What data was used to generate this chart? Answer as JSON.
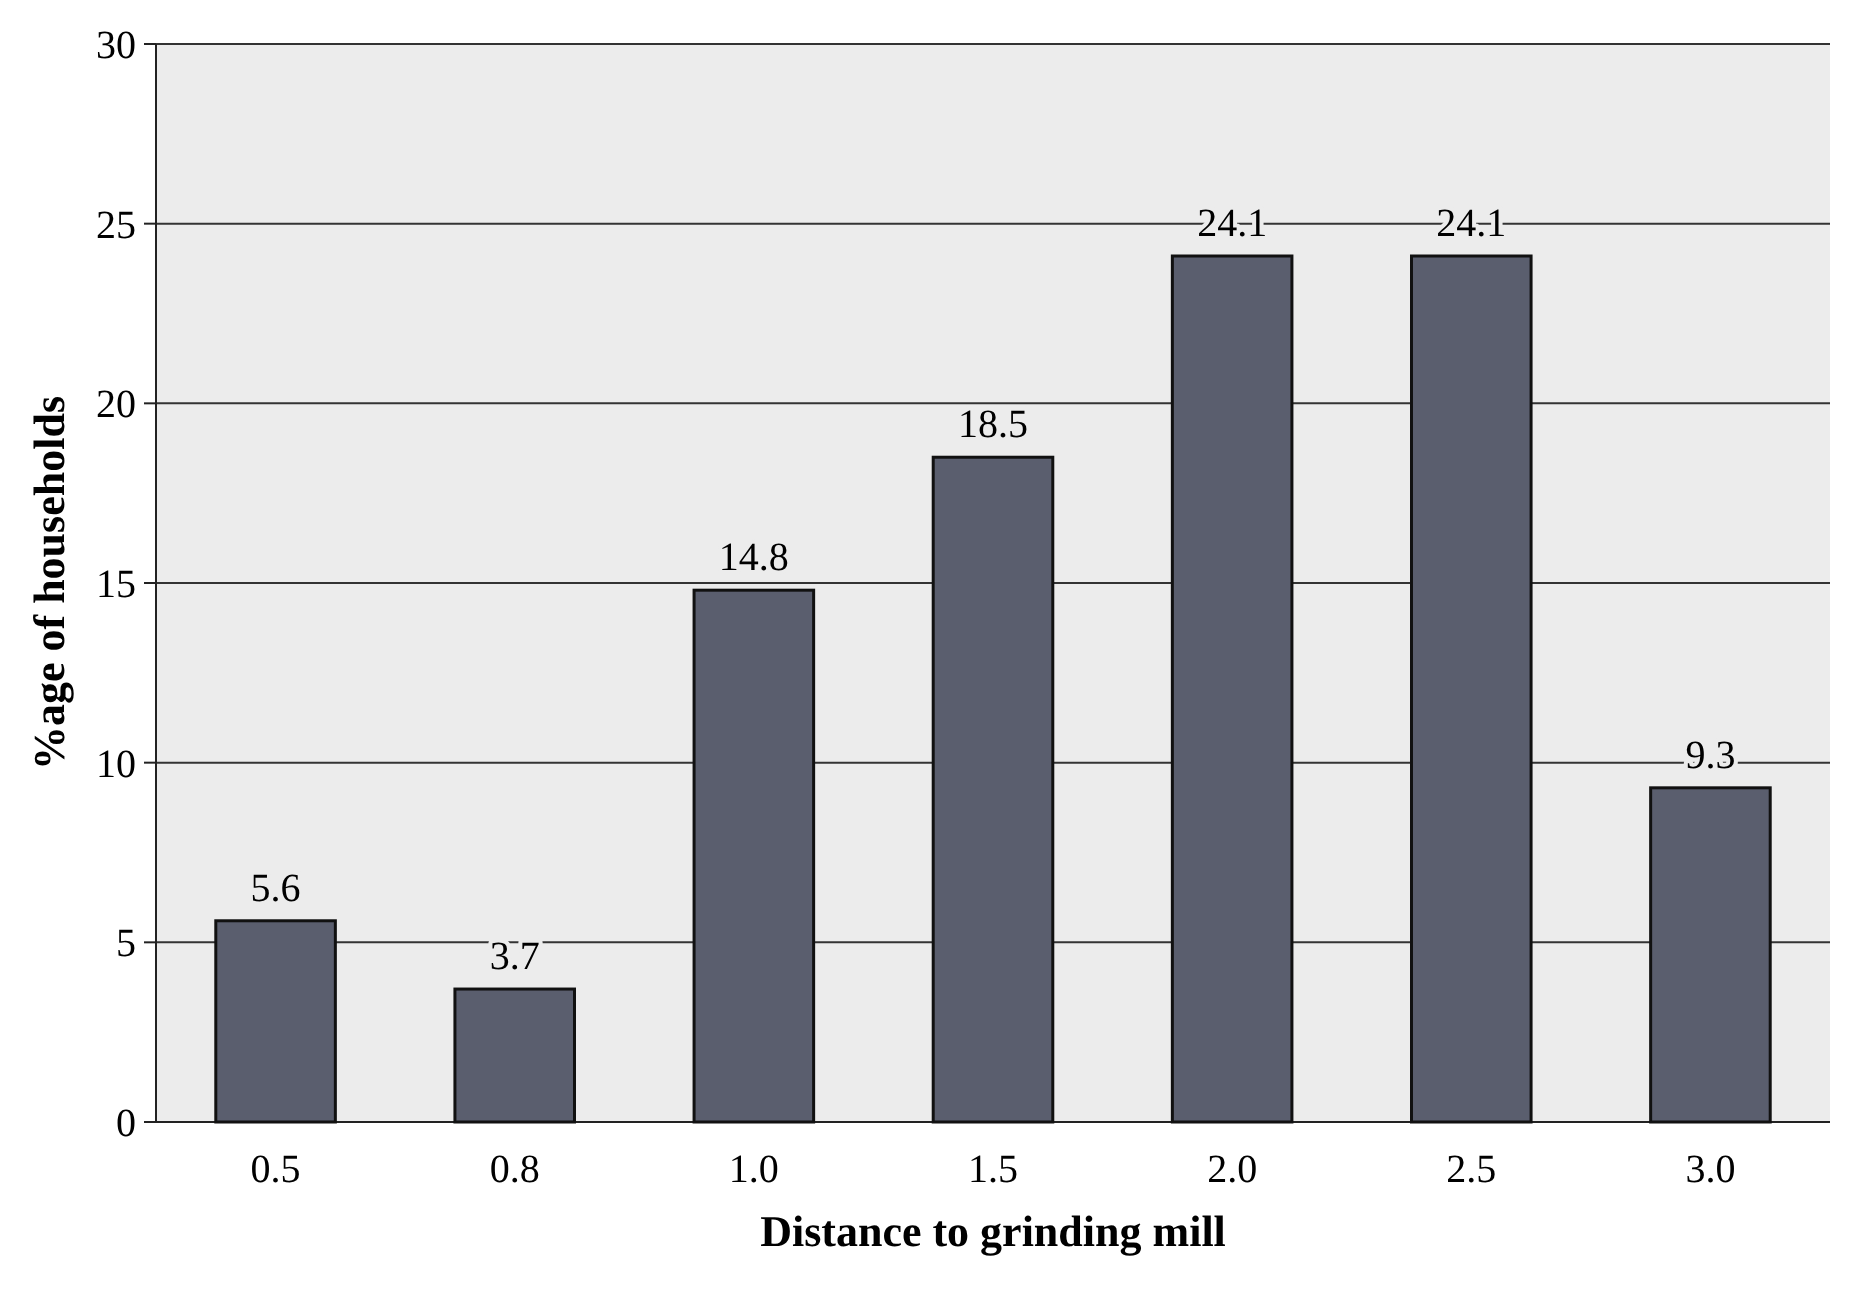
{
  "chart_data": {
    "type": "bar",
    "xlabel": "Distance to grinding mill",
    "ylabel": "%age of households",
    "categories": [
      "0.5",
      "0.8",
      "1.0",
      "1.5",
      "2.0",
      "2.5",
      "3.0"
    ],
    "values": [
      5.6,
      3.7,
      14.8,
      18.5,
      24.1,
      24.1,
      9.3
    ],
    "color": "#5a5e6e",
    "ylim": [
      0,
      30
    ],
    "yticks": [
      0,
      5,
      10,
      15,
      20,
      25,
      30
    ],
    "grid": "y",
    "data_labels": true
  }
}
